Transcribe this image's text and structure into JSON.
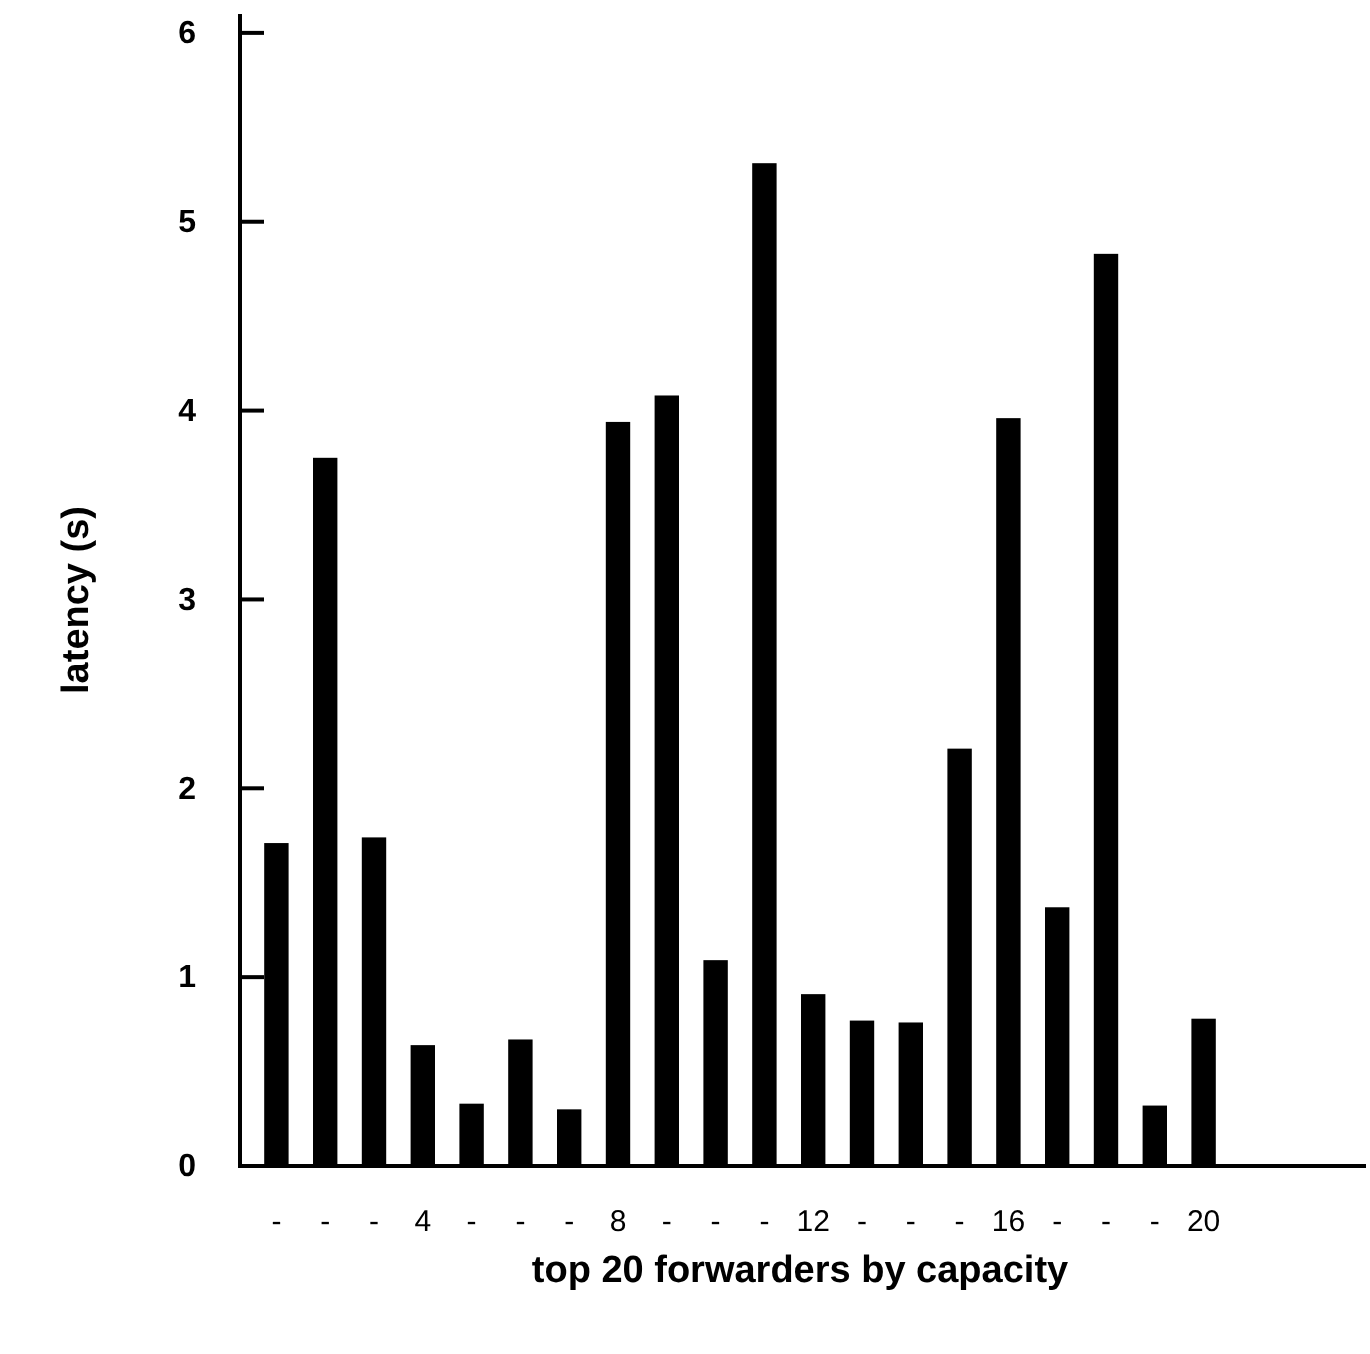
{
  "chart_data": {
    "type": "bar",
    "xlabel": "top 20 forwarders by capacity",
    "ylabel": "latency (s)",
    "categories": [
      "-",
      "-",
      "-",
      "4",
      "-",
      "-",
      "-",
      "8",
      "-",
      "-",
      "-",
      "12",
      "-",
      "-",
      "-",
      "16",
      "-",
      "-",
      "-",
      "20"
    ],
    "values": [
      1.71,
      3.75,
      1.74,
      0.64,
      0.33,
      0.67,
      0.3,
      3.94,
      4.08,
      1.09,
      5.31,
      0.91,
      0.77,
      0.76,
      2.21,
      3.96,
      1.37,
      4.83,
      0.32,
      0.78
    ],
    "color": "#000000",
    "ylim": [
      0,
      6.1
    ],
    "yticks": [
      0,
      1,
      2,
      3,
      4,
      5,
      6
    ],
    "grid": false
  }
}
